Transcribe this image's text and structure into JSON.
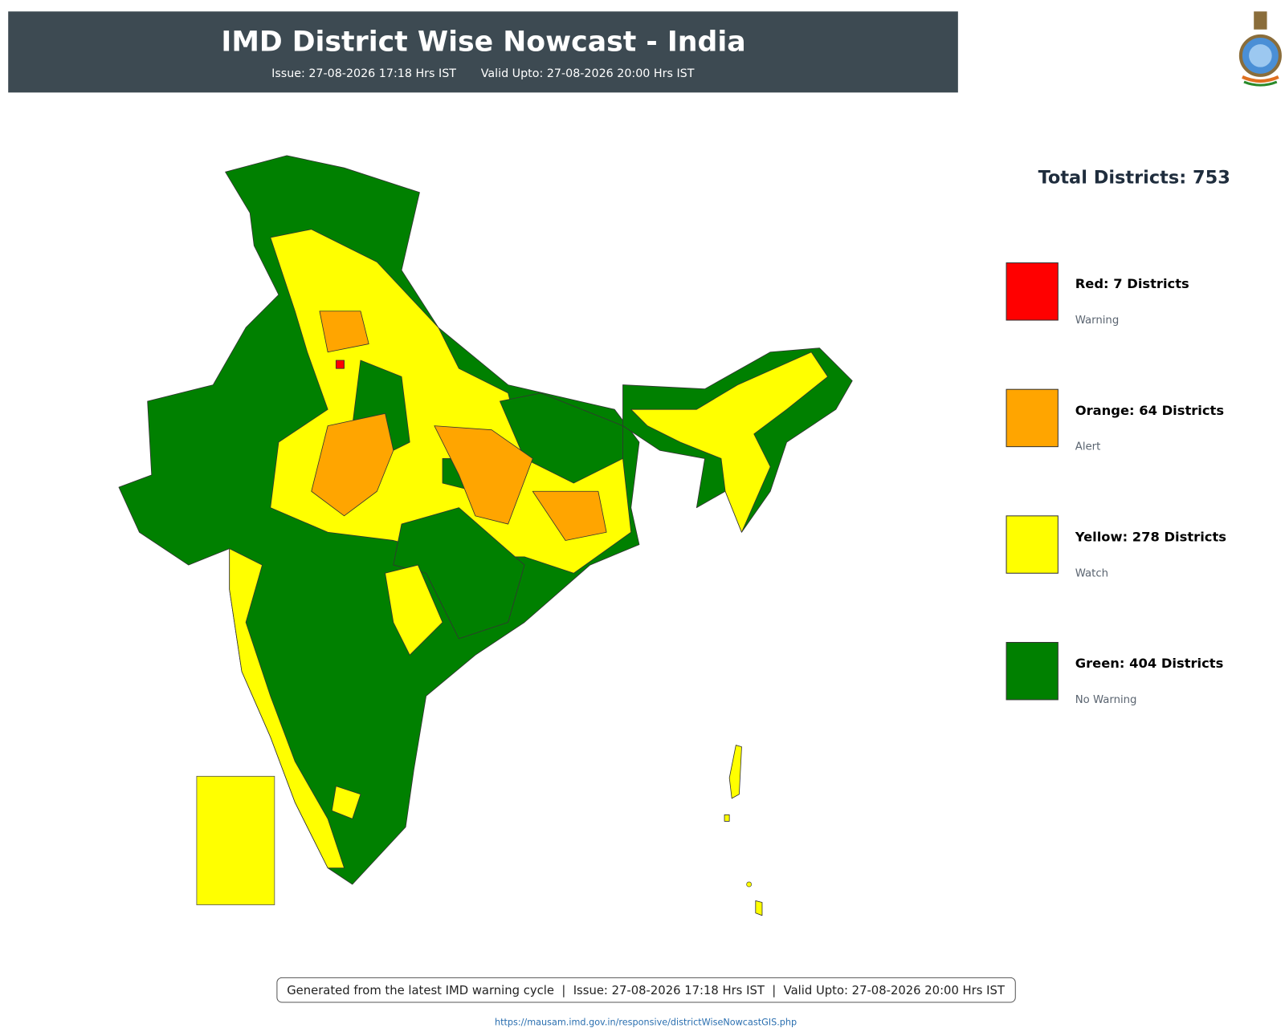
{
  "header": {
    "title": "IMD District Wise Nowcast - India",
    "issue": "Issue: 27-08-2026 17:18 Hrs IST",
    "valid": "Valid Upto: 27-08-2026 20:00 Hrs IST"
  },
  "summary": {
    "total": "Total Districts: 753"
  },
  "legend": [
    {
      "label": "Red: 7 Districts",
      "description": "Warning",
      "color": "#ff0000"
    },
    {
      "label": "Orange: 64 Districts",
      "description": "Alert",
      "color": "#ffa500"
    },
    {
      "label": "Yellow: 278 Districts",
      "description": "Watch",
      "color": "#ffff00"
    },
    {
      "label": "Green: 404 Districts",
      "description": "No Warning",
      "color": "#008000"
    }
  ],
  "footer": {
    "note": "Generated from the latest IMD warning cycle  |  Issue: 27-08-2026 17:18 Hrs IST  |  Valid Upto: 27-08-2026 20:00 Hrs IST",
    "url": "https://mausam.imd.gov.in/responsive/districtWiseNowcastGIS.php"
  }
}
